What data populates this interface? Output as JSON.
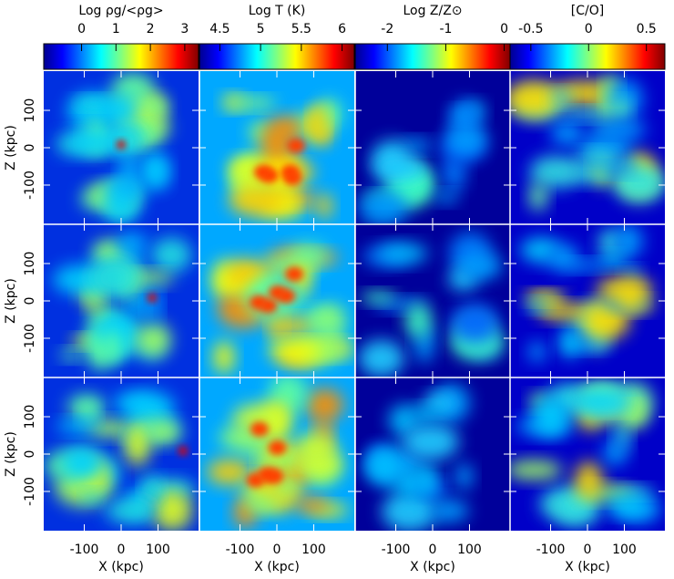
{
  "chart_data": {
    "type": "map-grid",
    "colorbars": [
      {
        "label": "Log ρg/<ρg>",
        "lim": [
          -1.1,
          3.4
        ],
        "ticks": [
          0,
          1,
          2,
          3
        ]
      },
      {
        "label": "Log T (K)",
        "lim": [
          4.25,
          6.15
        ],
        "ticks": [
          4.5,
          5,
          5.5,
          6
        ]
      },
      {
        "label": "Log Z/Z⊙",
        "lim": [
          -2.55,
          0.1
        ],
        "ticks": [
          -2,
          -1,
          0
        ]
      },
      {
        "label": "[C/O]",
        "lim": [
          -0.68,
          0.66
        ],
        "ticks": [
          -0.5,
          0,
          0.5
        ]
      }
    ],
    "xlabel": "X (kpc)",
    "ylabel": "Z (kpc)",
    "xlim": [
      -210,
      210
    ],
    "ylim": [
      -205,
      205
    ],
    "xticks": [
      -100,
      0,
      100
    ],
    "yticks": [
      -100,
      0,
      100
    ]
  }
}
